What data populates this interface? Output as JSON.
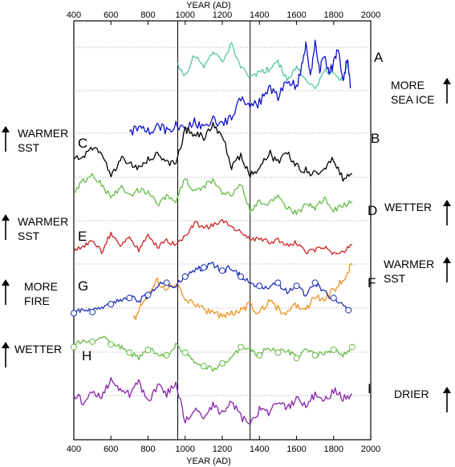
{
  "chart_data": {
    "type": "line",
    "title": "",
    "xlabel": "YEAR (AD)",
    "ylabel": "",
    "xlim": [
      400,
      2000
    ],
    "x_ticks": [
      "400",
      "600",
      "800",
      "1000",
      "1200",
      "1400",
      "1600",
      "1800",
      "2000"
    ],
    "grid": "horizontal dotted lines between stacked records",
    "vertical_markers": [
      960,
      1350
    ],
    "legend": "none (records labeled A–I)",
    "series": [
      {
        "name": "A",
        "color": "#55c79a",
        "x": [
          960,
          1000,
          1050,
          1100,
          1150,
          1200,
          1250,
          1300,
          1350,
          1400,
          1450,
          1500,
          1550,
          1600,
          1650,
          1700,
          1750,
          1800,
          1850,
          1880
        ],
        "y": [
          0.55,
          0.35,
          0.7,
          0.5,
          0.78,
          0.6,
          0.9,
          0.5,
          0.3,
          0.4,
          0.45,
          0.6,
          0.25,
          0.5,
          0.3,
          0.1,
          0.45,
          0.35,
          0.25,
          0.6
        ]
      },
      {
        "name": "B",
        "color": "#1010d0",
        "x": [
          700,
          750,
          800,
          850,
          900,
          950,
          1000,
          1050,
          1100,
          1150,
          1200,
          1250,
          1300,
          1350,
          1400,
          1450,
          1500,
          1550,
          1600,
          1625,
          1650,
          1675,
          1700,
          1725,
          1750,
          1775,
          1800,
          1825,
          1850,
          1875,
          1890
        ],
        "y": [
          0.05,
          0.08,
          0.04,
          0.1,
          0.06,
          0.12,
          0.08,
          0.15,
          0.1,
          0.18,
          0.12,
          0.2,
          0.4,
          0.3,
          0.35,
          0.5,
          0.4,
          0.6,
          0.5,
          0.7,
          0.95,
          0.6,
          1.0,
          0.7,
          0.85,
          0.65,
          0.75,
          0.9,
          0.6,
          0.8,
          0.5
        ]
      },
      {
        "name": "C",
        "color": "#000000",
        "x": [
          400,
          450,
          500,
          550,
          600,
          650,
          700,
          750,
          800,
          850,
          900,
          950,
          1000,
          1050,
          1100,
          1150,
          1200,
          1250,
          1300,
          1350,
          1400,
          1450,
          1500,
          1550,
          1600,
          1650,
          1700,
          1750,
          1800,
          1850,
          1900
        ],
        "y": [
          0.45,
          0.5,
          0.62,
          0.55,
          0.2,
          0.45,
          0.4,
          0.35,
          0.45,
          0.5,
          0.42,
          0.4,
          0.85,
          0.8,
          0.75,
          0.9,
          0.8,
          0.35,
          0.5,
          0.25,
          0.3,
          0.55,
          0.4,
          0.55,
          0.35,
          0.3,
          0.25,
          0.35,
          0.45,
          0.2,
          0.25
        ]
      },
      {
        "name": "D",
        "color": "#66bb44",
        "x": [
          400,
          450,
          500,
          550,
          600,
          650,
          700,
          750,
          800,
          850,
          900,
          950,
          1000,
          1050,
          1100,
          1150,
          1200,
          1250,
          1300,
          1350,
          1400,
          1450,
          1500,
          1550,
          1600,
          1650,
          1700,
          1750,
          1800,
          1850,
          1900
        ],
        "y": [
          0.6,
          0.8,
          0.9,
          0.75,
          0.5,
          0.7,
          0.55,
          0.65,
          0.6,
          0.4,
          0.55,
          0.45,
          0.85,
          0.6,
          0.7,
          0.8,
          0.6,
          0.55,
          0.75,
          0.3,
          0.45,
          0.4,
          0.55,
          0.35,
          0.25,
          0.4,
          0.35,
          0.5,
          0.3,
          0.4,
          0.45
        ]
      },
      {
        "name": "E",
        "color": "#cc2222",
        "x": [
          400,
          450,
          500,
          550,
          600,
          650,
          700,
          750,
          800,
          850,
          900,
          950,
          1000,
          1050,
          1100,
          1150,
          1200,
          1250,
          1300,
          1350,
          1400,
          1450,
          1500,
          1550,
          1600,
          1650,
          1700,
          1750,
          1800,
          1850,
          1900
        ],
        "y": [
          0.35,
          0.4,
          0.55,
          0.3,
          0.7,
          0.45,
          0.6,
          0.35,
          0.65,
          0.4,
          0.55,
          0.45,
          0.6,
          0.9,
          0.8,
          0.85,
          0.95,
          0.8,
          0.75,
          0.55,
          0.6,
          0.5,
          0.55,
          0.45,
          0.5,
          0.3,
          0.35,
          0.4,
          0.25,
          0.3,
          0.45
        ]
      },
      {
        "name": "F",
        "color": "#f0921e",
        "x": [
          720,
          760,
          800,
          850,
          900,
          950,
          1000,
          1050,
          1100,
          1150,
          1200,
          1250,
          1300,
          1350,
          1400,
          1450,
          1500,
          1550,
          1600,
          1650,
          1700,
          1750,
          1800,
          1850,
          1880,
          1900
        ],
        "y": [
          0.2,
          0.4,
          0.55,
          0.7,
          0.6,
          0.65,
          0.5,
          0.4,
          0.35,
          0.3,
          0.25,
          0.3,
          0.35,
          0.4,
          0.3,
          0.45,
          0.35,
          0.3,
          0.4,
          0.35,
          0.5,
          0.45,
          0.6,
          0.7,
          0.85,
          0.9
        ]
      },
      {
        "name": "G",
        "color": "#1f2fb3",
        "x": [
          400,
          450,
          500,
          550,
          600,
          650,
          700,
          750,
          800,
          850,
          900,
          950,
          1000,
          1050,
          1100,
          1150,
          1200,
          1250,
          1300,
          1350,
          1400,
          1450,
          1500,
          1550,
          1600,
          1650,
          1700,
          1750,
          1800,
          1850,
          1880
        ],
        "y": [
          0.1,
          0.15,
          0.12,
          0.2,
          0.25,
          0.3,
          0.35,
          0.3,
          0.4,
          0.55,
          0.6,
          0.55,
          0.7,
          0.8,
          0.85,
          0.9,
          0.8,
          0.85,
          0.7,
          0.6,
          0.55,
          0.5,
          0.6,
          0.45,
          0.55,
          0.4,
          0.6,
          0.45,
          0.35,
          0.25,
          0.15
        ]
      },
      {
        "name": "H",
        "color": "#66bb44",
        "x": [
          400,
          450,
          500,
          550,
          600,
          650,
          700,
          750,
          800,
          850,
          900,
          950,
          1000,
          1050,
          1100,
          1150,
          1200,
          1250,
          1300,
          1350,
          1400,
          1450,
          1500,
          1550,
          1600,
          1650,
          1700,
          1750,
          1800,
          1850,
          1900
        ],
        "y": [
          0.55,
          0.7,
          0.65,
          0.75,
          0.6,
          0.55,
          0.45,
          0.35,
          0.5,
          0.45,
          0.4,
          0.6,
          0.45,
          0.3,
          0.2,
          0.15,
          0.25,
          0.35,
          0.55,
          0.5,
          0.4,
          0.55,
          0.45,
          0.5,
          0.35,
          0.5,
          0.4,
          0.45,
          0.5,
          0.4,
          0.55
        ]
      },
      {
        "name": "I",
        "color": "#8822aa",
        "x": [
          400,
          450,
          500,
          550,
          600,
          650,
          700,
          750,
          800,
          850,
          900,
          950,
          1000,
          1050,
          1100,
          1150,
          1200,
          1250,
          1300,
          1350,
          1400,
          1450,
          1500,
          1550,
          1600,
          1650,
          1700,
          1750,
          1800,
          1850,
          1900
        ],
        "y": [
          0.55,
          0.45,
          0.6,
          0.5,
          0.75,
          0.6,
          0.55,
          0.7,
          0.45,
          0.65,
          0.55,
          0.7,
          0.2,
          0.35,
          0.25,
          0.4,
          0.3,
          0.45,
          0.25,
          0.15,
          0.35,
          0.3,
          0.45,
          0.35,
          0.5,
          0.4,
          0.55,
          0.45,
          0.6,
          0.5,
          0.55
        ]
      }
    ],
    "side_labels": {
      "left": [
        "WARMER\nSST",
        "WARMER\nSST",
        "MORE\nFIRE",
        "WETTER"
      ],
      "right": [
        "MORE\nSEA ICE",
        "WETTER",
        "WARMER\nSST",
        "DRIER"
      ]
    }
  }
}
